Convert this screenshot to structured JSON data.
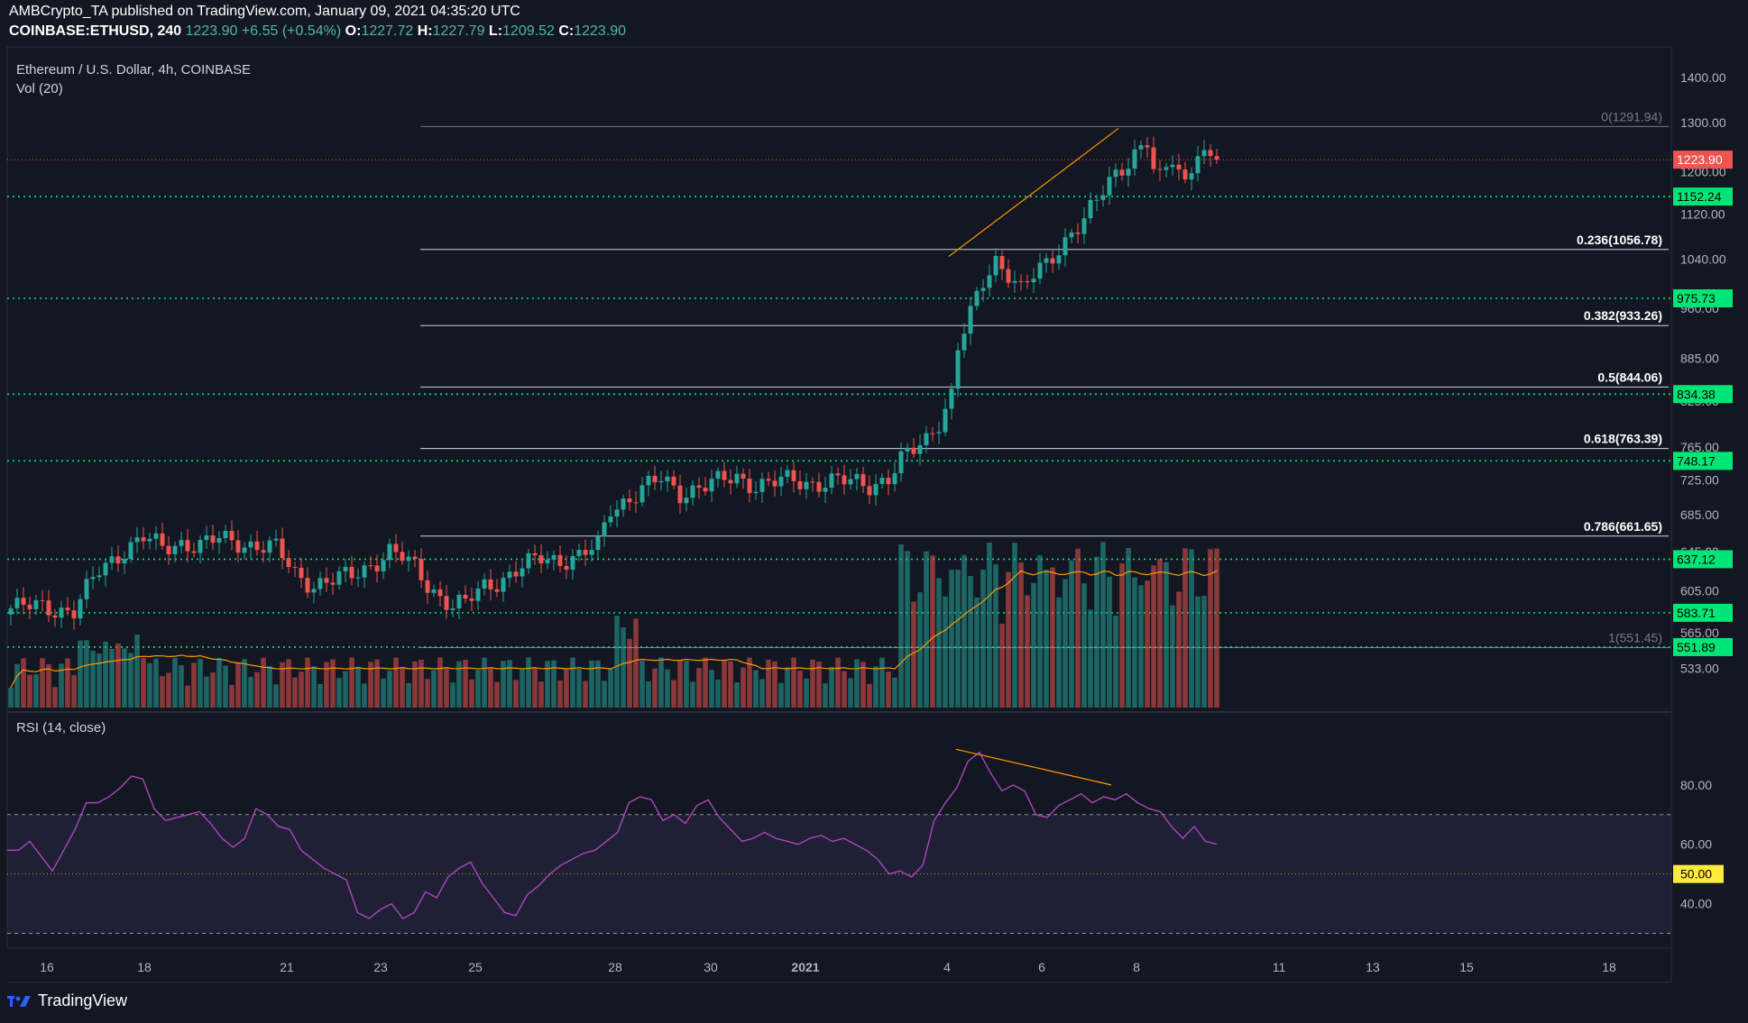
{
  "header": {
    "published": "AMBCrypto_TA published on TradingView.com, January 09, 2021 04:35:20 UTC",
    "symbol": "COINBASE:ETHUSD, 240",
    "last": "1223.90",
    "change": "+6.55 (+0.54%)",
    "o_label": "O:",
    "o": "1227.72",
    "h_label": "H:",
    "h": "1227.79",
    "l_label": "L:",
    "l": "1209.52",
    "c_label": "C:",
    "c": "1223.90"
  },
  "footer": {
    "brand": "TradingView"
  },
  "colors": {
    "bg": "#131722",
    "up": "#26a69a",
    "down": "#ef5350",
    "level": "#00e676",
    "rsi": "#ab47bc",
    "fib": "#d1d4dc",
    "trend": "#ff9800",
    "volume_ma": "#ff9800"
  },
  "chart_data": [
    {
      "type": "candlestick",
      "title": "Ethereum / U.S. Dollar, 4h, COINBASE",
      "y_scale": "log",
      "ylim": [
        500,
        1450
      ],
      "y_ticks": [
        "1400.00",
        "1300.00",
        "1200.00",
        "1120.00",
        "1040.00",
        "960.00",
        "885.00",
        "825.00",
        "765.00",
        "725.00",
        "685.00",
        "645.00",
        "605.00",
        "565.00",
        "533.00"
      ],
      "x_ticks": [
        "16",
        "18",
        "21",
        "23",
        "25",
        "28",
        "30",
        "2021",
        "4",
        "6",
        "8",
        "11",
        "13",
        "15",
        "18"
      ],
      "last_price": {
        "label": "1223.90",
        "value": 1223.9
      },
      "horizontal_levels": [
        {
          "label": "1152.24",
          "value": 1152.24
        },
        {
          "label": "975.73",
          "value": 975.73
        },
        {
          "label": "834.38",
          "value": 834.38
        },
        {
          "label": "748.17",
          "value": 748.17
        },
        {
          "label": "637.12",
          "value": 637.12
        },
        {
          "label": "583.71",
          "value": 583.71
        },
        {
          "label": "551.89",
          "value": 551.89
        }
      ],
      "fibonacci": [
        {
          "label": "0(1291.94)",
          "value": 1291.94
        },
        {
          "label": "0.236(1056.78)",
          "value": 1056.78
        },
        {
          "label": "0.382(933.26)",
          "value": 933.26
        },
        {
          "label": "0.5(844.06)",
          "value": 844.06
        },
        {
          "label": "0.618(763.39)",
          "value": 763.39
        },
        {
          "label": "0.786(661.65)",
          "value": 661.65
        },
        {
          "label": "1(551.45)",
          "value": 551.45
        }
      ],
      "price_close_path": [
        [
          0,
          588
        ],
        [
          5,
          590
        ],
        [
          10,
          585
        ],
        [
          14,
          625
        ],
        [
          18,
          648
        ],
        [
          21,
          660
        ],
        [
          24,
          648
        ],
        [
          27,
          655
        ],
        [
          30,
          652
        ],
        [
          33,
          658
        ],
        [
          36,
          655
        ],
        [
          39,
          652
        ],
        [
          42,
          648
        ],
        [
          45,
          622
        ],
        [
          48,
          612
        ],
        [
          51,
          615
        ],
        [
          54,
          620
        ],
        [
          57,
          632
        ],
        [
          60,
          645
        ],
        [
          62,
          638
        ],
        [
          64,
          628
        ],
        [
          66,
          612
        ],
        [
          68,
          600
        ],
        [
          70,
          590
        ],
        [
          72,
          592
        ],
        [
          75,
          610
        ],
        [
          78,
          618
        ],
        [
          81,
          628
        ],
        [
          84,
          638
        ],
        [
          87,
          637
        ],
        [
          90,
          640
        ],
        [
          93,
          650
        ],
        [
          95,
          692
        ],
        [
          98,
          705
        ],
        [
          100,
          715
        ],
        [
          103,
          725
        ],
        [
          106,
          710
        ],
        [
          109,
          718
        ],
        [
          112,
          722
        ],
        [
          115,
          728
        ],
        [
          118,
          720
        ],
        [
          121,
          722
        ],
        [
          124,
          724
        ],
        [
          127,
          722
        ],
        [
          130,
          724
        ],
        [
          133,
          722
        ],
        [
          136,
          720
        ],
        [
          139,
          728
        ],
        [
          141,
          748
        ],
        [
          143,
          760
        ],
        [
          145,
          775
        ],
        [
          147,
          800
        ],
        [
          149,
          835
        ],
        [
          150,
          900
        ],
        [
          152,
          948
        ],
        [
          154,
          1000
        ],
        [
          156,
          1040
        ],
        [
          158,
          1020
        ],
        [
          160,
          990
        ],
        [
          162,
          1010
        ],
        [
          164,
          1030
        ],
        [
          166,
          1060
        ],
        [
          168,
          1090
        ],
        [
          170,
          1110
        ],
        [
          172,
          1140
        ],
        [
          174,
          1180
        ],
        [
          176,
          1210
        ],
        [
          178,
          1240
        ],
        [
          180,
          1260
        ],
        [
          181,
          1200
        ],
        [
          182,
          1180
        ],
        [
          184,
          1225
        ],
        [
          186,
          1180
        ],
        [
          188,
          1250
        ],
        [
          190,
          1220
        ],
        [
          191,
          1223.9
        ]
      ],
      "volume_panel": {
        "label": "Vol (20)"
      },
      "trendline": {
        "from": "Jan 4, 1045",
        "to": "Jan 7, 1288"
      }
    },
    {
      "type": "line",
      "title": "RSI (14, close)",
      "ylim": [
        25,
        100
      ],
      "y_ticks": [
        "80.00",
        "60.00",
        "40.00"
      ],
      "midline": {
        "label": "50.00",
        "value": 50
      },
      "bands": [
        30,
        70
      ],
      "values": [
        58,
        58,
        61,
        56,
        51,
        58,
        65,
        74,
        74,
        76,
        79,
        83,
        82,
        72,
        68,
        69,
        70,
        71,
        67,
        62,
        59,
        62,
        72,
        70,
        66,
        65,
        58,
        55,
        52,
        50,
        48,
        37,
        35,
        38,
        40,
        35,
        37,
        44,
        42,
        49,
        52,
        54,
        47,
        42,
        37,
        36,
        43,
        46,
        50,
        53,
        55,
        57,
        58,
        61,
        64,
        74,
        76,
        75,
        68,
        70,
        67,
        73,
        75,
        69,
        65,
        61,
        62,
        64,
        62,
        61,
        60,
        62,
        63,
        61,
        62,
        60,
        58,
        55,
        50,
        51,
        49,
        53,
        68,
        74,
        79,
        88,
        91,
        84,
        78,
        80,
        78,
        70,
        69,
        73,
        75,
        77,
        74,
        76,
        75,
        77,
        74,
        72,
        71,
        66,
        62,
        66,
        61,
        60
      ],
      "divergence_line": {
        "from": "Jan 4, 92",
        "to": "Jan 7, 80"
      }
    }
  ]
}
